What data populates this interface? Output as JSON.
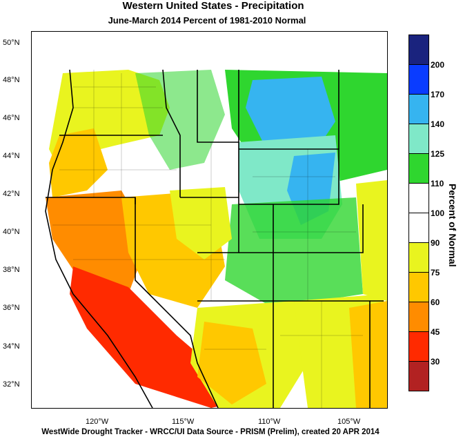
{
  "title": "Western United States - Precipitation",
  "subtitle": "June-March 2014  Percent of 1981-2010 Normal",
  "footer": "WestWide Drought Tracker - WRCC/UI  Data Source - PRISM (Prelim), created 20 APR 2014",
  "lat_labels": [
    "50°N",
    "48°N",
    "46°N",
    "44°N",
    "42°N",
    "40°N",
    "38°N",
    "36°N",
    "34°N",
    "32°N"
  ],
  "lon_labels": [
    "120°W",
    "115°W",
    "110°W",
    "105°W"
  ],
  "colorbar": {
    "title": "Percent of Normal",
    "labels": [
      "200",
      "170",
      "140",
      "125",
      "110",
      "100",
      "90",
      "75",
      "60",
      "45",
      "30"
    ],
    "colors": [
      "#1a237e",
      "#0a3cff",
      "#36b4f0",
      "#7fe8c8",
      "#2fd62f",
      "#ffffff",
      "#ffffff",
      "#e9f41f",
      "#ffc800",
      "#ff8c00",
      "#ff2a00",
      "#b22222"
    ]
  },
  "colors": {
    "wet_strong": "#36b4f0",
    "wet_mid": "#7fe8c8",
    "wet_light": "#2fd62f",
    "normal": "#ffffff",
    "dry_light": "#e9f41f",
    "dry_mid": "#ffc800",
    "dry_strong": "#ff8c00",
    "very_dry": "#ff2a00"
  }
}
